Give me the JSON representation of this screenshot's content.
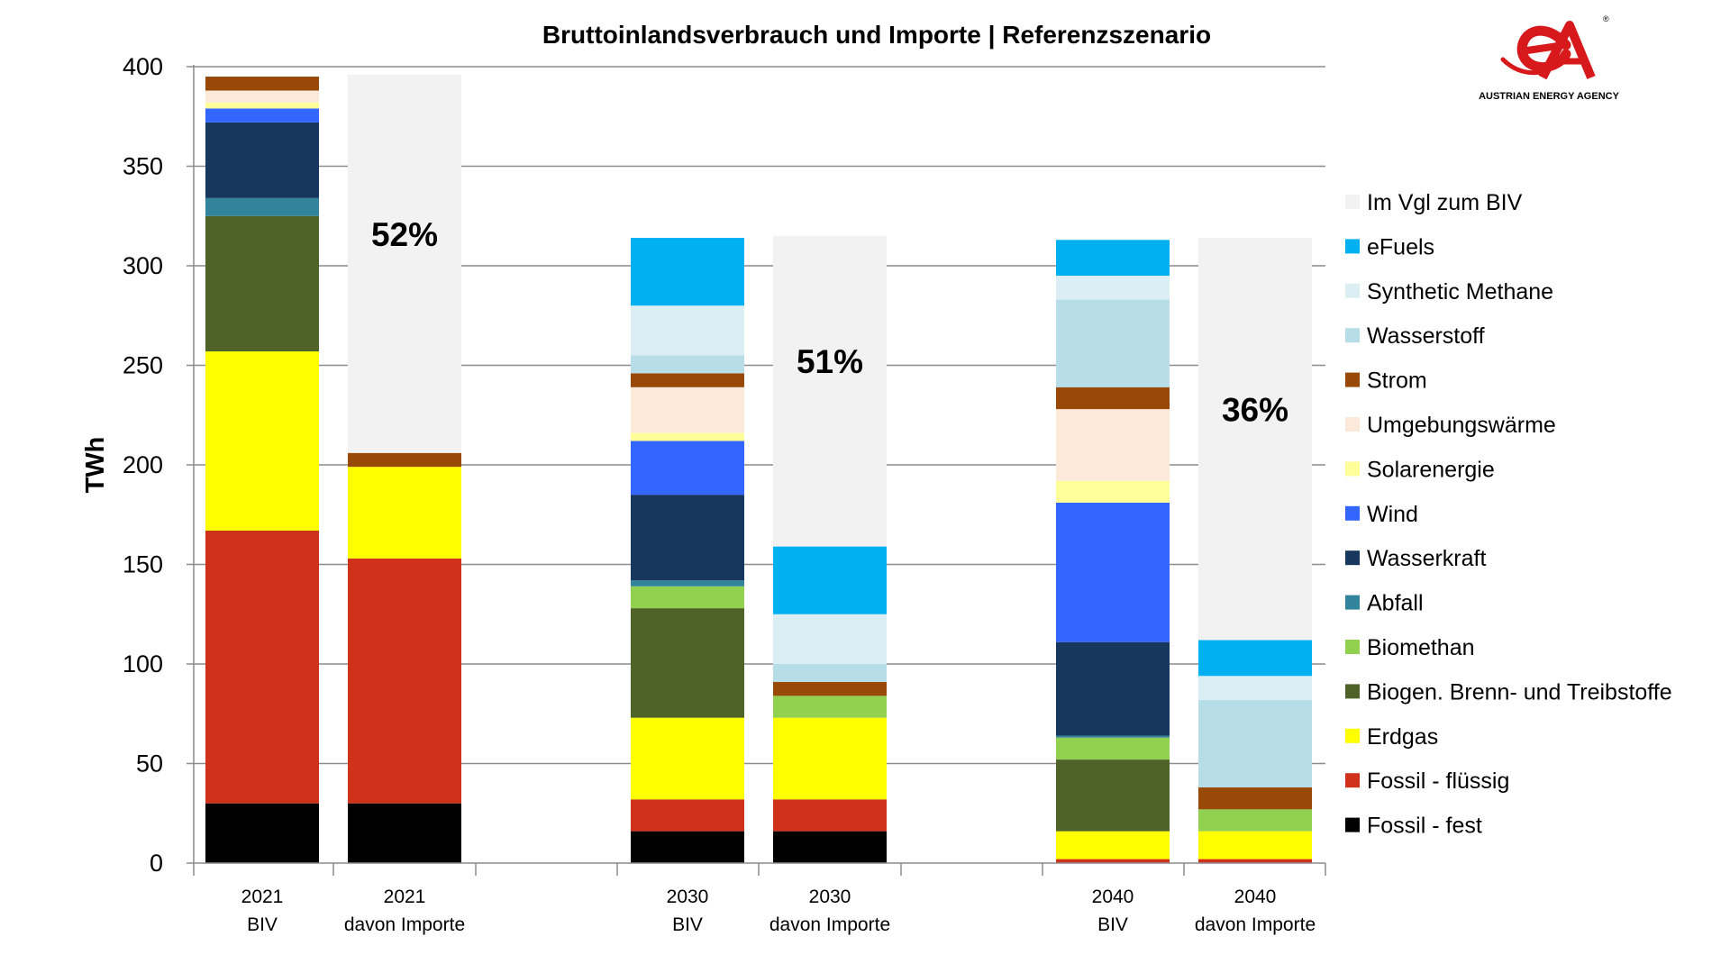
{
  "logo": {
    "mark": "eA",
    "registered": "®",
    "org_name": "AUSTRIAN ENERGY AGENCY",
    "color": "#d7191c"
  },
  "chart_data": {
    "type": "bar",
    "stacked": true,
    "title": "Bruttoinlandsverbrauch und Importe | Referenzszenario",
    "ylabel": "TWh",
    "xlabel": "",
    "ylim": [
      0,
      400
    ],
    "yticks": [
      0,
      50,
      100,
      150,
      200,
      250,
      300,
      350,
      400
    ],
    "grid": true,
    "legend_position": "right",
    "groups": [
      {
        "year": "2021",
        "bars": [
          {
            "line1": "2021",
            "line2": "BIV"
          },
          {
            "line1": "2021",
            "line2": "davon Importe"
          }
        ]
      },
      {
        "year": "2030",
        "bars": [
          {
            "line1": "2030",
            "line2": "BIV"
          },
          {
            "line1": "2030",
            "line2": "davon Importe"
          }
        ]
      },
      {
        "year": "2040",
        "bars": [
          {
            "line1": "2040",
            "line2": "BIV"
          },
          {
            "line1": "2040",
            "line2": "davon Importe"
          }
        ]
      }
    ],
    "categories": [
      "2021 BIV",
      "2021 davon Importe",
      "2030 BIV",
      "2030 davon Importe",
      "2040 BIV",
      "2040 davon Importe"
    ],
    "series": [
      {
        "name": "Fossil - fest",
        "color": "#000000",
        "values": [
          30,
          30,
          16,
          16,
          0,
          0
        ]
      },
      {
        "name": "Fossil - flüssig",
        "color": "#d0311b",
        "values": [
          137,
          123,
          16,
          16,
          2,
          2
        ]
      },
      {
        "name": "Erdgas",
        "color": "#ffff00",
        "values": [
          90,
          46,
          41,
          41,
          14,
          14
        ]
      },
      {
        "name": "Biogen. Brenn- und Treibstoffe",
        "color": "#4f6228",
        "values": [
          68,
          0,
          55,
          0,
          36,
          0
        ]
      },
      {
        "name": "Biomethan",
        "color": "#92d050",
        "values": [
          0,
          0,
          11,
          11,
          11,
          11
        ]
      },
      {
        "name": "Abfall",
        "color": "#31849b",
        "values": [
          9,
          0,
          3,
          0,
          1,
          0
        ]
      },
      {
        "name": "Wasserkraft",
        "color": "#17375e",
        "values": [
          38,
          0,
          43,
          0,
          47,
          0
        ]
      },
      {
        "name": "Wind",
        "color": "#3366ff",
        "values": [
          7,
          0,
          27,
          0,
          70,
          0
        ]
      },
      {
        "name": "Solarenergie",
        "color": "#ffff99",
        "values": [
          3,
          0,
          4,
          0,
          11,
          0
        ]
      },
      {
        "name": "Umgebungswärme",
        "color": "#fde9d9",
        "values": [
          6,
          0,
          23,
          0,
          36,
          0
        ]
      },
      {
        "name": "Strom",
        "color": "#984807",
        "values": [
          7,
          7,
          7,
          7,
          11,
          11
        ]
      },
      {
        "name": "Wasserstoff",
        "color": "#b7dde8",
        "values": [
          0,
          0,
          9,
          9,
          44,
          44
        ]
      },
      {
        "name": "Synthetic Methane",
        "color": "#dbeef4",
        "values": [
          0,
          0,
          25,
          25,
          12,
          12
        ]
      },
      {
        "name": "eFuels",
        "color": "#00b0f0",
        "values": [
          0,
          0,
          34,
          34,
          18,
          18
        ]
      },
      {
        "name": "Im Vgl zum BIV",
        "color": "#f2f2f2",
        "values": [
          0,
          190,
          0,
          156,
          0,
          202
        ]
      }
    ],
    "import_shares": [
      {
        "bar_index": 1,
        "label": "52%"
      },
      {
        "bar_index": 3,
        "label": "51%"
      },
      {
        "bar_index": 5,
        "label": "36%"
      }
    ]
  }
}
